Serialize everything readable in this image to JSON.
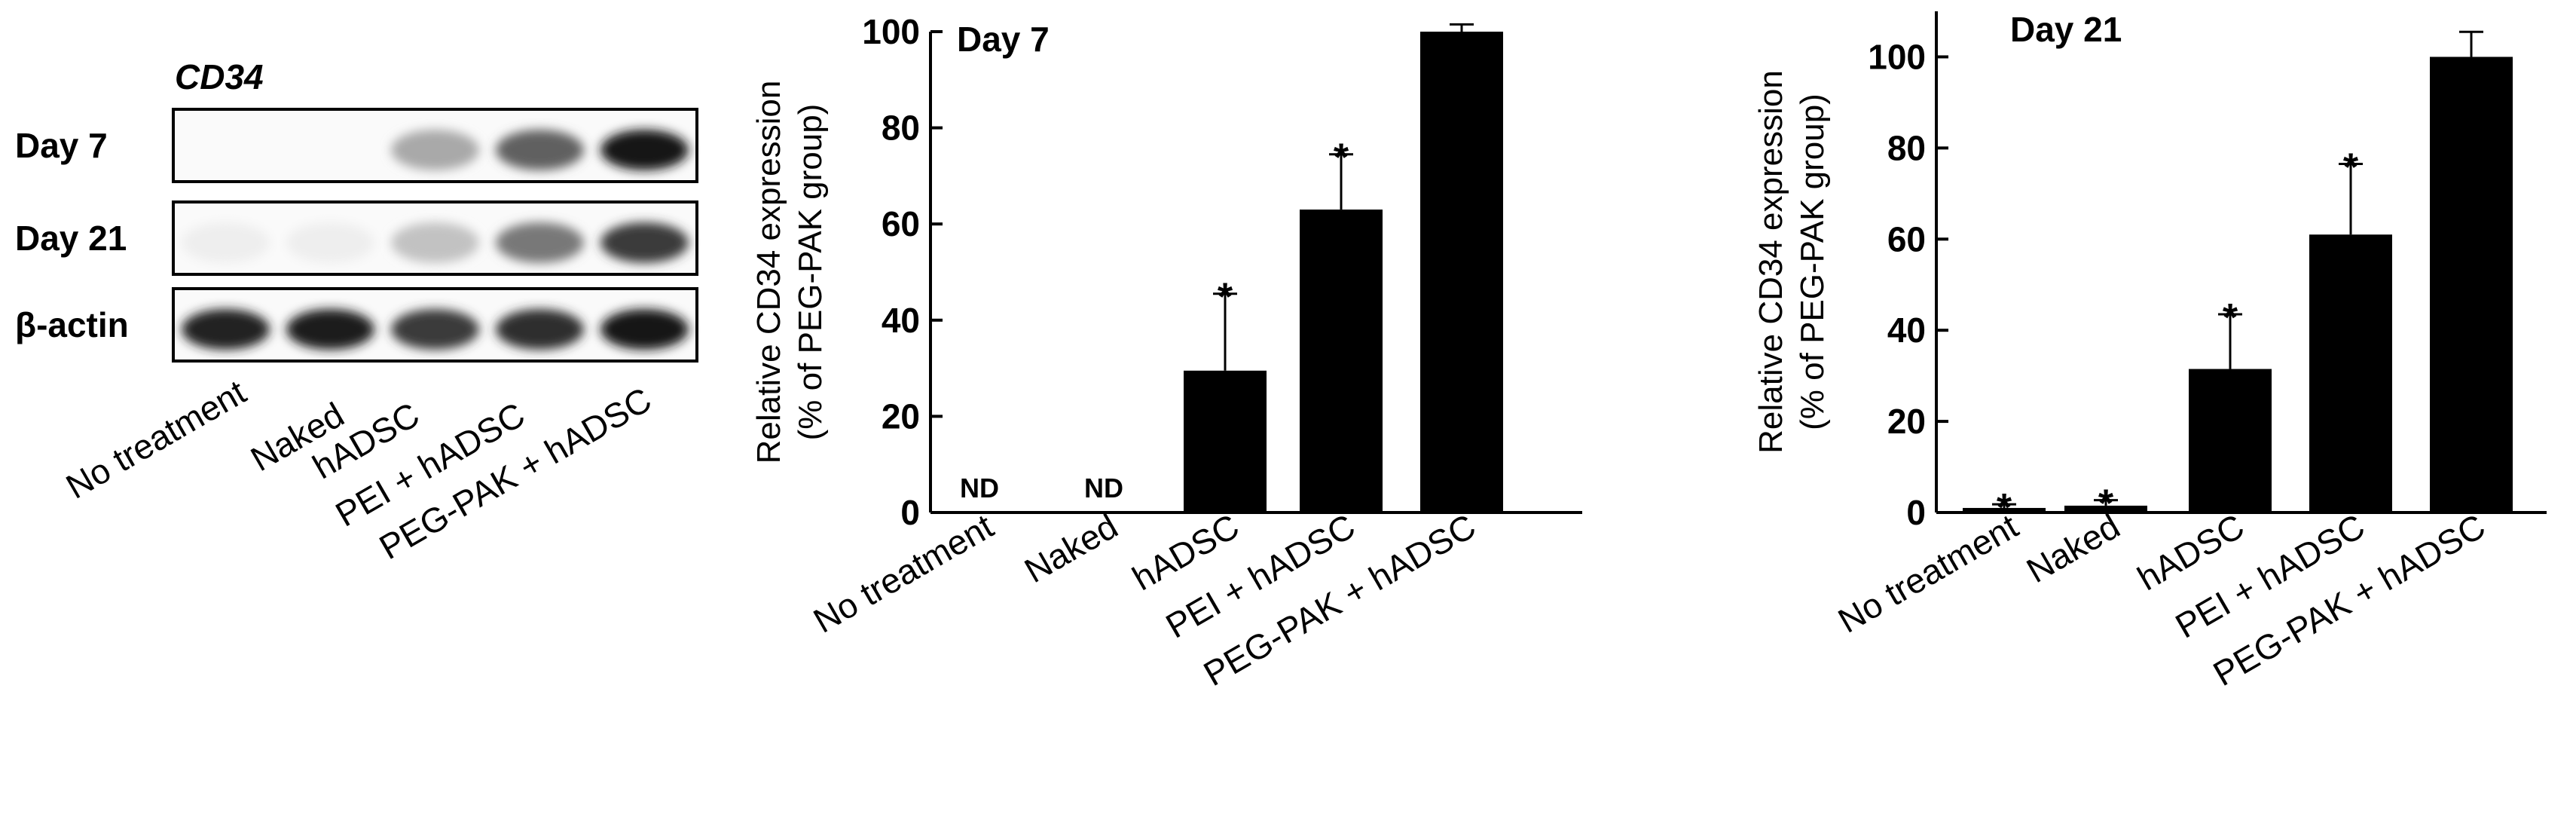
{
  "blot": {
    "gene_label": "CD34",
    "rows": [
      {
        "label": "Day 7",
        "intensity": [
          0.02,
          0.02,
          0.35,
          0.65,
          0.95
        ]
      },
      {
        "label": "Day 21",
        "intensity": [
          0.07,
          0.07,
          0.25,
          0.55,
          0.8
        ]
      },
      {
        "label": "β-actin",
        "intensity": [
          0.9,
          0.92,
          0.8,
          0.85,
          0.95
        ]
      }
    ],
    "lanes": [
      "No treatment",
      "Naked",
      "hADSC",
      "PEI + hADSC",
      "PEG-PAK + hADSC"
    ]
  },
  "chart_data": [
    {
      "type": "bar",
      "title": "Day 7",
      "ylabel": "Relative CD34 expression (% of PEG-PAK group)",
      "ylabel_lines": [
        "Relative CD34 expression",
        "(% of PEG-PAK group)"
      ],
      "ylim": [
        0,
        100
      ],
      "yticks": [
        0,
        20,
        40,
        60,
        80,
        100
      ],
      "categories": [
        "No treatment",
        "Naked",
        "hADSC",
        "PEI + hADSC",
        "PEG-PAK + hADSC"
      ],
      "values": [
        0,
        0,
        29.5,
        63,
        100
      ],
      "errors": [
        0,
        0,
        16,
        11.5,
        1.5
      ],
      "annotations": [
        "ND",
        "ND",
        "*",
        "*",
        ""
      ]
    },
    {
      "type": "bar",
      "title": "Day 21",
      "ylabel": "Relative CD34 expression (% of PEG-PAK group)",
      "ylabel_lines": [
        "Relative CD34 expression",
        "(% of PEG-PAK group)"
      ],
      "ylim": [
        0,
        110
      ],
      "yticks": [
        0,
        20,
        40,
        60,
        80,
        100
      ],
      "categories": [
        "No treatment",
        "Naked",
        "hADSC",
        "PEI + hADSC",
        "PEG-PAK + hADSC"
      ],
      "values": [
        1,
        1.5,
        31.5,
        61,
        100
      ],
      "errors": [
        0.8,
        1.2,
        12,
        15.5,
        5.5
      ],
      "annotations": [
        "*",
        "*",
        "*",
        "*",
        ""
      ]
    }
  ]
}
